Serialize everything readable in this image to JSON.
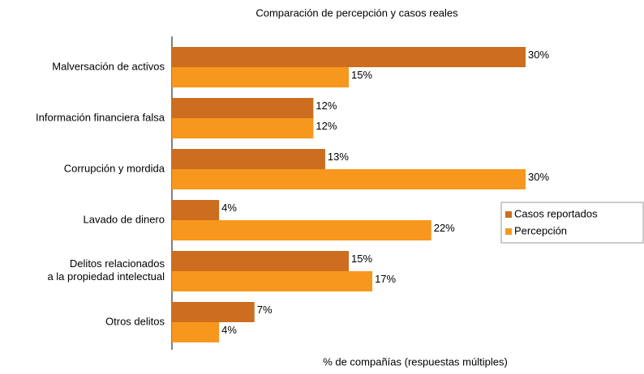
{
  "chart_data": {
    "type": "barh",
    "title": "Comparación de percepción y casos reales",
    "xlabel": "% de compañías (respuestas múltiples)",
    "categories": [
      "Malversación de activos",
      "Información financiera falsa",
      "Corrupción y mordida",
      "Lavado de dinero",
      "Delitos relacionados\na la propiedad intelectual",
      "Otros delitos"
    ],
    "series": [
      {
        "name": "Casos reportados",
        "color": "#cc6d1f",
        "values": [
          30,
          12,
          13,
          4,
          15,
          7
        ],
        "value_labels": [
          "30%",
          "12%",
          "13%",
          "4%",
          "15%",
          "7%"
        ]
      },
      {
        "name": "Percepción",
        "color": "#f7971d",
        "values": [
          15,
          12,
          30,
          22,
          17,
          4
        ],
        "value_labels": [
          "15%",
          "12%",
          "30%",
          "22%",
          "17%",
          "4%"
        ]
      }
    ],
    "xlim": [
      0,
      30
    ],
    "legend": "right"
  }
}
